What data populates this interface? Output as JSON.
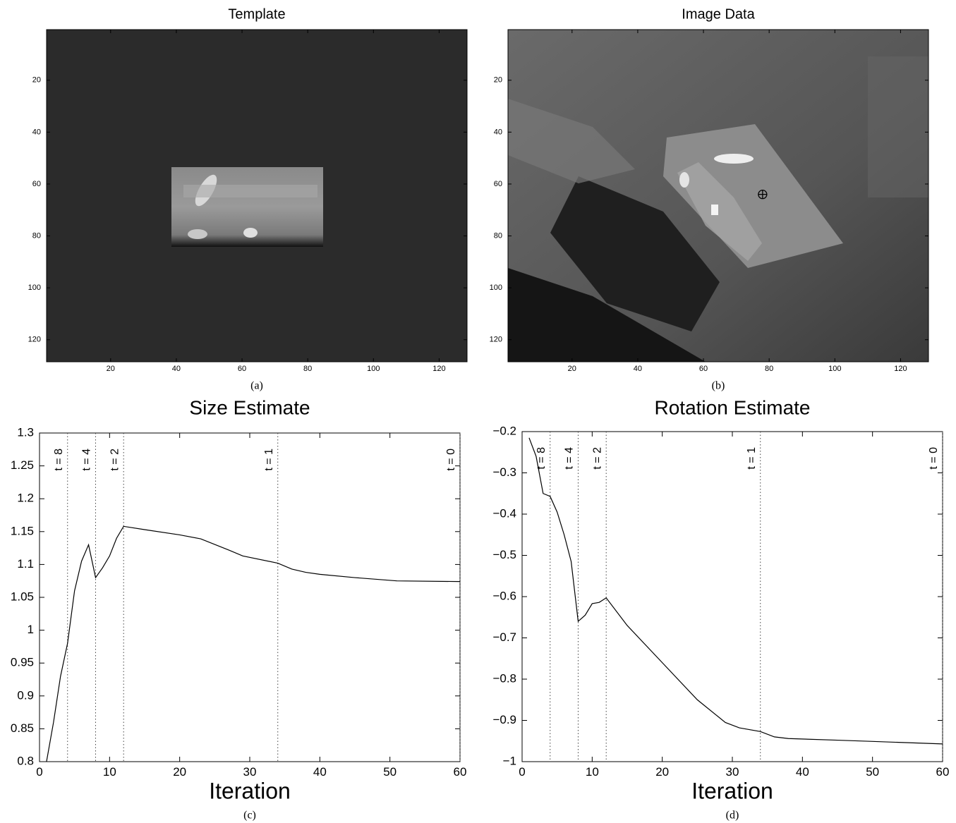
{
  "chart_data": [
    {
      "type": "image",
      "title": "Template",
      "caption": "(a)",
      "xlim": [
        0.5,
        128.5
      ],
      "ylim": [
        0.5,
        128.5
      ],
      "xticks": [
        20,
        40,
        60,
        80,
        100,
        120
      ],
      "yticks": [
        20,
        40,
        60,
        80,
        100,
        120
      ]
    },
    {
      "type": "image",
      "title": "Image Data",
      "caption": "(b)",
      "xlim": [
        0.5,
        128.5
      ],
      "ylim": [
        0.5,
        128.5
      ],
      "xticks": [
        20,
        40,
        60,
        80,
        100,
        120
      ],
      "yticks": [
        20,
        40,
        60,
        80,
        100,
        120
      ],
      "marker": {
        "x": 78,
        "y": 64
      }
    },
    {
      "type": "line",
      "title": "Size Estimate",
      "xlabel": "Iteration",
      "caption": "(c)",
      "xlim": [
        0,
        60
      ],
      "ylim": [
        0.8,
        1.3
      ],
      "xticks": [
        0,
        10,
        20,
        30,
        40,
        50,
        60
      ],
      "yticks": [
        0.8,
        0.85,
        0.9,
        0.95,
        1,
        1.05,
        1.1,
        1.15,
        1.2,
        1.25,
        1.3
      ],
      "x": [
        1,
        2,
        3,
        4,
        5,
        6,
        7,
        8,
        9,
        10,
        11,
        12,
        15,
        20,
        23,
        27,
        29,
        34,
        36,
        38,
        40,
        45,
        51,
        60
      ],
      "values": [
        0.8,
        0.86,
        0.93,
        0.98,
        1.06,
        1.105,
        1.13,
        1.08,
        1.095,
        1.113,
        1.14,
        1.158,
        1.153,
        1.145,
        1.139,
        1.122,
        1.113,
        1.102,
        1.093,
        1.088,
        1.085,
        1.08,
        1.075,
        1.074
      ],
      "color": "#000000",
      "annotations": [
        {
          "x": 4,
          "label": "t = 8"
        },
        {
          "x": 8,
          "label": "t = 4"
        },
        {
          "x": 12,
          "label": "t = 2"
        },
        {
          "x": 34,
          "label": "t = 1"
        },
        {
          "x": 60,
          "label": "t = 0"
        }
      ]
    },
    {
      "type": "line",
      "title": "Rotation Estimate",
      "xlabel": "Iteration",
      "caption": "(d)",
      "xlim": [
        0,
        60
      ],
      "ylim": [
        -1,
        -0.2
      ],
      "xticks": [
        0,
        10,
        20,
        30,
        40,
        50,
        60
      ],
      "yticks": [
        {
          "value": -1,
          "label": "−1"
        },
        {
          "value": -0.9,
          "label": "−0.9"
        },
        {
          "value": -0.8,
          "label": "−0.8"
        },
        {
          "value": -0.7,
          "label": "−0.7"
        },
        {
          "value": -0.6,
          "label": "−0.6"
        },
        {
          "value": -0.5,
          "label": "−0.5"
        },
        {
          "value": -0.4,
          "label": "−0.4"
        },
        {
          "value": -0.3,
          "label": "−0.3"
        },
        {
          "value": -0.2,
          "label": "−0.2"
        }
      ],
      "x": [
        1,
        2,
        3,
        4,
        5,
        6,
        7,
        8,
        9,
        10,
        11,
        12,
        15,
        20,
        25,
        29,
        31,
        34,
        36,
        38,
        45,
        50,
        60
      ],
      "values": [
        -0.215,
        -0.26,
        -0.35,
        -0.357,
        -0.395,
        -0.45,
        -0.515,
        -0.66,
        -0.645,
        -0.617,
        -0.614,
        -0.603,
        -0.67,
        -0.76,
        -0.85,
        -0.905,
        -0.918,
        -0.927,
        -0.94,
        -0.944,
        -0.948,
        -0.951,
        -0.957
      ],
      "color": "#000000",
      "annotations": [
        {
          "x": 4,
          "label": "t = 8"
        },
        {
          "x": 8,
          "label": "t = 4"
        },
        {
          "x": 12,
          "label": "t = 2"
        },
        {
          "x": 34,
          "label": "t = 1"
        },
        {
          "x": 60,
          "label": "t = 0"
        }
      ]
    }
  ]
}
